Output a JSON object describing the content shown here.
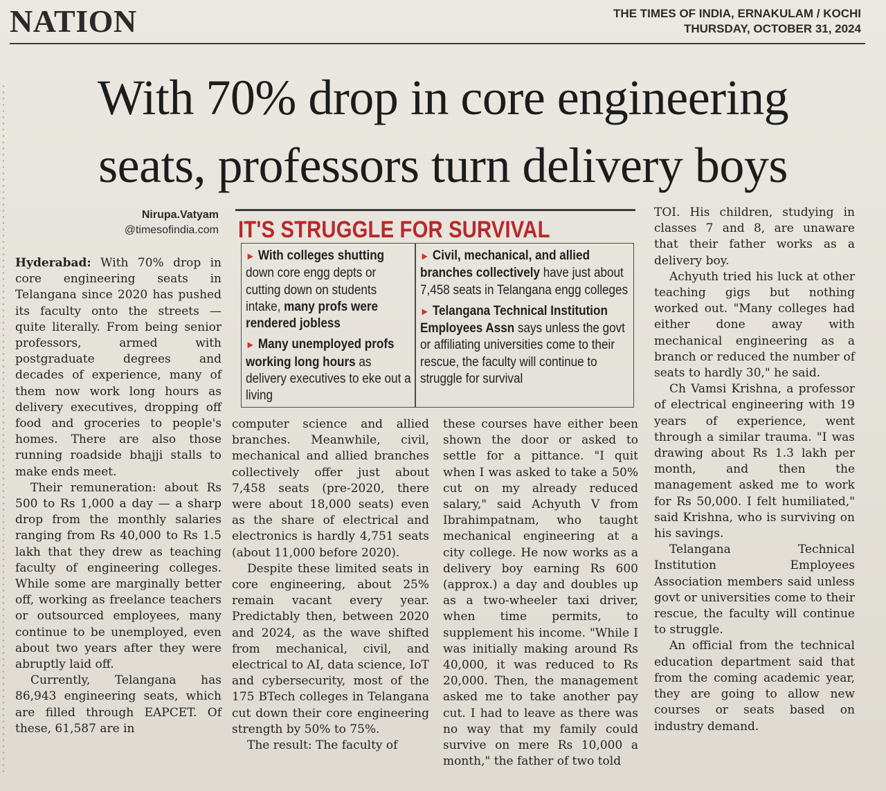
{
  "section": "NATION",
  "masthead": {
    "publication": "THE TIMES OF INDIA, ERNAKULAM / KOCHI",
    "date": "THURSDAY, OCTOBER 31, 2024"
  },
  "headline": {
    "line1": "With 70% drop in core engineering",
    "line2": "seats, professors turn delivery boys"
  },
  "byline": {
    "name": "Nirupa.Vatyam",
    "email": "@timesofindia.com"
  },
  "box": {
    "title": "IT'S STRUGGLE FOR SURVIVAL",
    "left": [
      {
        "bold1": "With colleges shutting",
        "text1": " down core engg depts or cutting down on students intake, ",
        "bold2": "many profs were rendered jobless"
      },
      {
        "bold1": "Many unemployed profs working long hours",
        "text1": " as delivery executives to eke out a living",
        "bold2": ""
      }
    ],
    "right": [
      {
        "bold1": "Civil, mechanical, and allied branches collectively",
        "text1": " have just about 7,458 seats in Telangana engg colleges",
        "bold2": ""
      },
      {
        "bold1": "Telangana Technical Institution Employees Assn",
        "text1": " says unless the govt or affiliating universities come to their rescue, the faculty will continue to struggle for survival",
        "bold2": ""
      }
    ]
  },
  "article": {
    "dateline": "Hyderabad:",
    "col1": [
      " With 70% drop in core engineering seats in Telangana since 2020 has pushed its faculty onto the streets — quite literally. From being senior professors, armed with postgraduate degrees and decades of experience, many of them now work long hours as delivery executives, dropping off food and groceries to people's homes. There are also those running roadside bhajji stalls to make ends meet.",
      "Their remuneration: about Rs 500 to Rs 1,000 a day — a sharp drop from the monthly salaries ranging from Rs 40,000 to Rs 1.5 lakh that they drew as teaching faculty of engineering colleges. While some are marginally better off, working as freelance teachers or outsourced employees, many continue to be unemployed, even about two years after they were abruptly laid off.",
      "Currently, Telangana has 86,943 engineering seats, which are filled through EAPCET. Of these, 61,587 are in"
    ],
    "col2": [
      "computer science and allied branches. Meanwhile, civil, mechanical and allied branches collectively offer just about 7,458 seats (pre-2020, there were about 18,000 seats) even as the share of electrical and electronics is hardly 4,751 seats (about 11,000 before 2020).",
      "Despite these limited seats in core engineering, about 25% remain vacant every year. Predictably then, between 2020 and 2024, as the wave shifted from mechanical, civil, and electrical to AI, data science, IoT and cybersecurity, most of the 175 BTech colleges in Telangana cut down their core engineering strength by 50% to 75%.",
      "The result: The faculty of"
    ],
    "col3": [
      "these courses have either been shown the door or asked to settle for a pittance. \"I quit when I was asked to take a 50% cut on my already reduced salary,\" said Achyuth V from Ibrahimpatnam, who taught mechanical engineering at a city college. He now works as a delivery boy earning Rs 600 (approx.) a day and doubles up as a two-wheeler taxi driver, when time permits, to supplement his income. \"While I was initially making around Rs 40,000, it was reduced to Rs 20,000. Then, the management asked me to take another pay cut. I had to leave as there was no way that my family could survive on mere Rs 10,000 a month,\" the father of two told"
    ],
    "col4": [
      "TOI. His children, studying in classes 7 and 8, are unaware that their father works as a delivery boy.",
      "Achyuth tried his luck at other teaching gigs but nothing worked out. \"Many colleges had either done away with mechanical engineering as a branch or reduced the number of seats to hardly 30,\" he said.",
      "Ch Vamsi Krishna, a professor of electrical engineering with 19 years of experience, went through a similar trauma. \"I was drawing about Rs 1.3 lakh per month, and then the management asked me to work for Rs 50,000. I felt humiliated,\" said Krishna, who is surviving on his savings.",
      "Telangana Technical Institution Employees Association members said unless govt or universities come to their rescue, the faculty will continue to struggle.",
      "An official from the technical education department said that from the coming academic year, they are going to allow new courses or seats based on industry demand."
    ]
  }
}
